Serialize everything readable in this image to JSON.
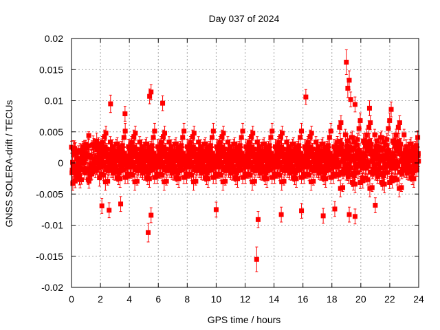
{
  "chart_data": {
    "type": "scatter",
    "title": "Day 037 of 2024",
    "xlabel": "GPS time / hours",
    "ylabel": "GNSS SOLERA-drift / TECUs",
    "xlim": [
      0,
      24
    ],
    "ylim": [
      -0.02,
      0.02
    ],
    "xticks": [
      0,
      2,
      4,
      6,
      8,
      10,
      12,
      14,
      16,
      18,
      20,
      22,
      24
    ],
    "yticks": [
      -0.02,
      -0.015,
      -0.01,
      -0.005,
      0,
      0.005,
      0.01,
      0.015,
      0.02
    ],
    "xtick_labels": [
      "0",
      "2",
      "4",
      "6",
      "8",
      "10",
      "12",
      "14",
      "16",
      "18",
      "20",
      "22",
      "24"
    ],
    "ytick_labels": [
      "-0.02",
      "-0.015",
      "-0.01",
      "-0.005",
      "0",
      "0.005",
      "0.01",
      "0.015",
      "0.02"
    ],
    "grid": true,
    "series_color": "#ff0000",
    "marker": "square",
    "error_bars": true,
    "points": [
      {
        "x": 2.7,
        "y": 0.0095,
        "err": 0.0014
      },
      {
        "x": 3.7,
        "y": 0.0079,
        "err": 0.0012
      },
      {
        "x": 5.4,
        "y": 0.0107,
        "err": 0.0012
      },
      {
        "x": 5.5,
        "y": 0.0114,
        "err": 0.0012
      },
      {
        "x": 6.3,
        "y": 0.0096,
        "err": 0.0012
      },
      {
        "x": 16.2,
        "y": 0.0106,
        "err": 0.0012
      },
      {
        "x": 19.0,
        "y": 0.0162,
        "err": 0.002
      },
      {
        "x": 19.1,
        "y": 0.012,
        "err": 0.0015
      },
      {
        "x": 19.2,
        "y": 0.0133,
        "err": 0.0015
      },
      {
        "x": 19.3,
        "y": 0.0102,
        "err": 0.0012
      },
      {
        "x": 19.6,
        "y": 0.0094,
        "err": 0.0012
      },
      {
        "x": 20.6,
        "y": 0.0088,
        "err": 0.0012
      },
      {
        "x": 22.1,
        "y": 0.0086,
        "err": 0.0012
      },
      {
        "x": 2.1,
        "y": -0.0069,
        "err": 0.0012
      },
      {
        "x": 2.6,
        "y": -0.0076,
        "err": 0.0012
      },
      {
        "x": 3.4,
        "y": -0.0066,
        "err": 0.0012
      },
      {
        "x": 5.3,
        "y": -0.0112,
        "err": 0.0015
      },
      {
        "x": 5.5,
        "y": -0.0084,
        "err": 0.0012
      },
      {
        "x": 10.0,
        "y": -0.0075,
        "err": 0.0012
      },
      {
        "x": 12.8,
        "y": -0.0155,
        "err": 0.002
      },
      {
        "x": 12.9,
        "y": -0.0091,
        "err": 0.0013
      },
      {
        "x": 14.5,
        "y": -0.0083,
        "err": 0.0012
      },
      {
        "x": 15.9,
        "y": -0.0077,
        "err": 0.0012
      },
      {
        "x": 17.4,
        "y": -0.0085,
        "err": 0.0012
      },
      {
        "x": 18.2,
        "y": -0.0074,
        "err": 0.0012
      },
      {
        "x": 19.2,
        "y": -0.0083,
        "err": 0.0012
      },
      {
        "x": 19.6,
        "y": -0.0086,
        "err": 0.0012
      },
      {
        "x": 21.0,
        "y": -0.0068,
        "err": 0.0012
      }
    ],
    "bulk_noise": {
      "x_range": [
        0,
        24
      ],
      "approx_count": 1300,
      "typical_abs_y": 0.003,
      "typical_err": 0.001,
      "note": "dense cloud of points centred on zero"
    }
  }
}
